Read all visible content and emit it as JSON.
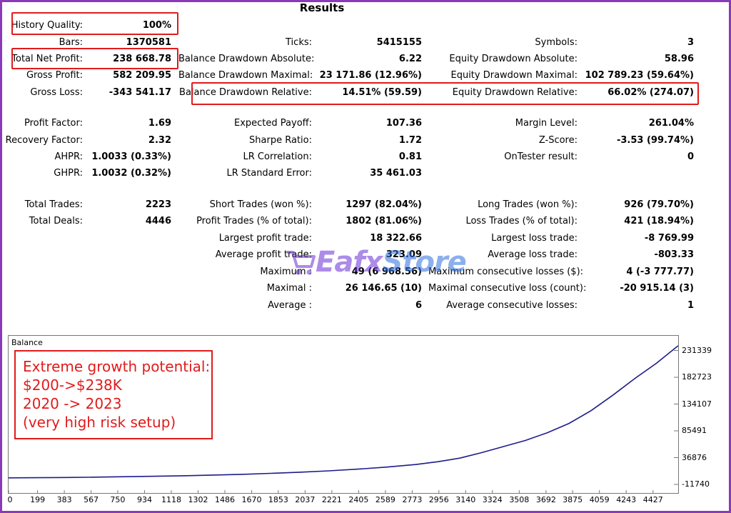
{
  "title": "Results",
  "stats": {
    "history_quality": {
      "label": "History Quality:",
      "value": "100%"
    },
    "bars": {
      "label": "Bars:",
      "value": "1370581"
    },
    "ticks": {
      "label": "Ticks:",
      "value": "5415155"
    },
    "symbols": {
      "label": "Symbols:",
      "value": "3"
    },
    "total_net_profit": {
      "label": "Total Net Profit:",
      "value": "238 668.78"
    },
    "balance_dd_abs": {
      "label": "Balance Drawdown Absolute:",
      "value": "6.22"
    },
    "equity_dd_abs": {
      "label": "Equity Drawdown Absolute:",
      "value": "58.96"
    },
    "gross_profit": {
      "label": "Gross Profit:",
      "value": "582 209.95"
    },
    "balance_dd_max": {
      "label": "Balance Drawdown Maximal:",
      "value": "23 171.86 (12.96%)"
    },
    "equity_dd_max": {
      "label": "Equity Drawdown Maximal:",
      "value": "102 789.23 (59.64%)"
    },
    "gross_loss": {
      "label": "Gross Loss:",
      "value": "-343 541.17"
    },
    "balance_dd_rel": {
      "label": "Balance Drawdown Relative:",
      "value": "14.51% (59.59)"
    },
    "equity_dd_rel": {
      "label": "Equity Drawdown Relative:",
      "value": "66.02% (274.07)"
    },
    "profit_factor": {
      "label": "Profit Factor:",
      "value": "1.69"
    },
    "expected_payoff": {
      "label": "Expected Payoff:",
      "value": "107.36"
    },
    "margin_level": {
      "label": "Margin Level:",
      "value": "261.04%"
    },
    "recovery_factor": {
      "label": "Recovery Factor:",
      "value": "2.32"
    },
    "sharpe_ratio": {
      "label": "Sharpe Ratio:",
      "value": "1.72"
    },
    "z_score": {
      "label": "Z-Score:",
      "value": "-3.53 (99.74%)"
    },
    "ahpr": {
      "label": "AHPR:",
      "value": "1.0033 (0.33%)"
    },
    "lr_correlation": {
      "label": "LR Correlation:",
      "value": "0.81"
    },
    "ontester": {
      "label": "OnTester result:",
      "value": "0"
    },
    "ghpr": {
      "label": "GHPR:",
      "value": "1.0032 (0.32%)"
    },
    "lr_std_error": {
      "label": "LR Standard Error:",
      "value": "35 461.03"
    },
    "total_trades": {
      "label": "Total Trades:",
      "value": "2223"
    },
    "short_trades": {
      "label": "Short Trades (won %):",
      "value": "1297 (82.04%)"
    },
    "long_trades": {
      "label": "Long Trades (won %):",
      "value": "926 (79.70%)"
    },
    "total_deals": {
      "label": "Total Deals:",
      "value": "4446"
    },
    "profit_trades": {
      "label": "Profit Trades (% of total):",
      "value": "1802 (81.06%)"
    },
    "loss_trades": {
      "label": "Loss Trades (% of total):",
      "value": "421 (18.94%)"
    },
    "largest_profit": {
      "label": "Largest profit trade:",
      "value": "18 322.66"
    },
    "largest_loss": {
      "label": "Largest loss trade:",
      "value": "-8 769.99"
    },
    "avg_profit": {
      "label": "Average profit trade:",
      "value": "323.09"
    },
    "avg_loss": {
      "label": "Average loss trade:",
      "value": "-803.33"
    },
    "maximum": {
      "label": "Maximum :",
      "value": "49 (6 968.56)"
    },
    "max_consec_losses": {
      "label": "Maximum consecutive losses ($):",
      "value": "4 (-3 777.77)"
    },
    "maximal": {
      "label": "Maximal :",
      "value": "26 146.65 (10)"
    },
    "maximal_consec_loss": {
      "label": "Maximal consecutive loss (count):",
      "value": "-20 915.14 (3)"
    },
    "average": {
      "label": "Average :",
      "value": "6"
    },
    "avg_consec_losses": {
      "label": "Average consecutive losses:",
      "value": "1"
    }
  },
  "watermark": {
    "part1": "Eafx",
    "part2": "Store"
  },
  "callout": {
    "line1": "Extreme growth potential:",
    "line2": "$200->$238K",
    "line3": "2020 -> 2023",
    "line4": "(very high risk setup)"
  },
  "colors": {
    "highlight": "#e11b1b",
    "line": "#1c1c8c",
    "frame": "#8a3ab9"
  },
  "chart_data": {
    "type": "line",
    "title": "Balance",
    "y_ticks": [
      "231339",
      "182723",
      "134107",
      "85491",
      "36876",
      "-11740"
    ],
    "x_ticks": [
      "0",
      "199",
      "383",
      "567",
      "750",
      "934",
      "1118",
      "1302",
      "1486",
      "1670",
      "1853",
      "2037",
      "2221",
      "2405",
      "2589",
      "2773",
      "2956",
      "3140",
      "3324",
      "3508",
      "3692",
      "3875",
      "4059",
      "4243",
      "4427"
    ],
    "xlim": [
      0,
      4600
    ],
    "ylim": [
      -11740,
      245000
    ],
    "series": [
      {
        "x": [
          0,
          200,
          400,
          600,
          800,
          1000,
          1200,
          1400,
          1600,
          1800,
          2000,
          2200,
          2400,
          2600,
          2800,
          2950,
          3100,
          3250,
          3400,
          3550,
          3700,
          3850,
          4000,
          4150,
          4300,
          4450,
          4600
        ],
        "values": [
          200,
          500,
          900,
          1500,
          2200,
          3000,
          4000,
          5200,
          6600,
          8300,
          10400,
          12900,
          16000,
          19800,
          24500,
          29500,
          36000,
          46000,
          57000,
          68000,
          82000,
          99000,
          122000,
          150000,
          180000,
          208000,
          240000
        ]
      }
    ]
  }
}
